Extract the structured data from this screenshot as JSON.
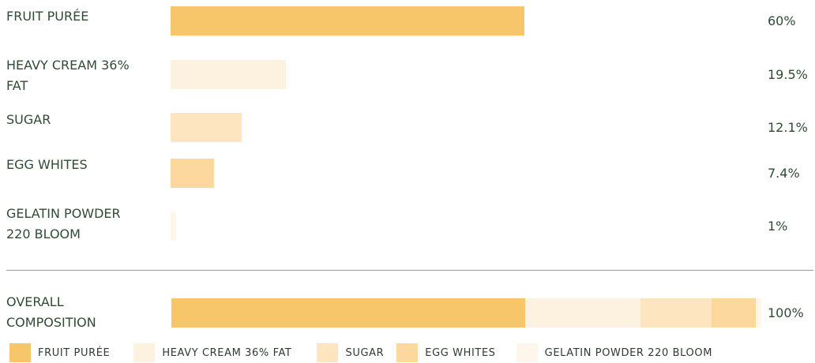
{
  "chart_data": {
    "type": "bar",
    "categories": [
      "FRUIT PURÉE",
      "HEAVY CREAM 36% FAT",
      "SUGAR",
      "EGG WHITES",
      "GELATIN POWDER 220 BLOOM"
    ],
    "display_labels": [
      [
        "FRUIT PURÉE"
      ],
      [
        "HEAVY CREAM 36%",
        "FAT"
      ],
      [
        "SUGAR"
      ],
      [
        "EGG WHITES"
      ],
      [
        "GELATIN POWDER",
        "220 BLOOM"
      ]
    ],
    "values": [
      60,
      19.5,
      12.1,
      7.4,
      1
    ],
    "value_labels": [
      "60%",
      "19.5%",
      "12.1%",
      "7.4%",
      "1%"
    ],
    "colors": [
      "#f7c56a",
      "#fdf2df",
      "#fde5c0",
      "#fcd89e",
      "#fef6ea"
    ],
    "xlim": [
      0,
      100
    ],
    "total": {
      "label_lines": [
        "OVERALL",
        "COMPOSITION"
      ],
      "value_label": "100%"
    },
    "legend": [
      "FRUIT PURÉE",
      "HEAVY CREAM 36% FAT",
      "SUGAR",
      "EGG WHITES",
      "GELATIN POWDER 220 BLOOM"
    ],
    "legend_position": "bottom"
  }
}
